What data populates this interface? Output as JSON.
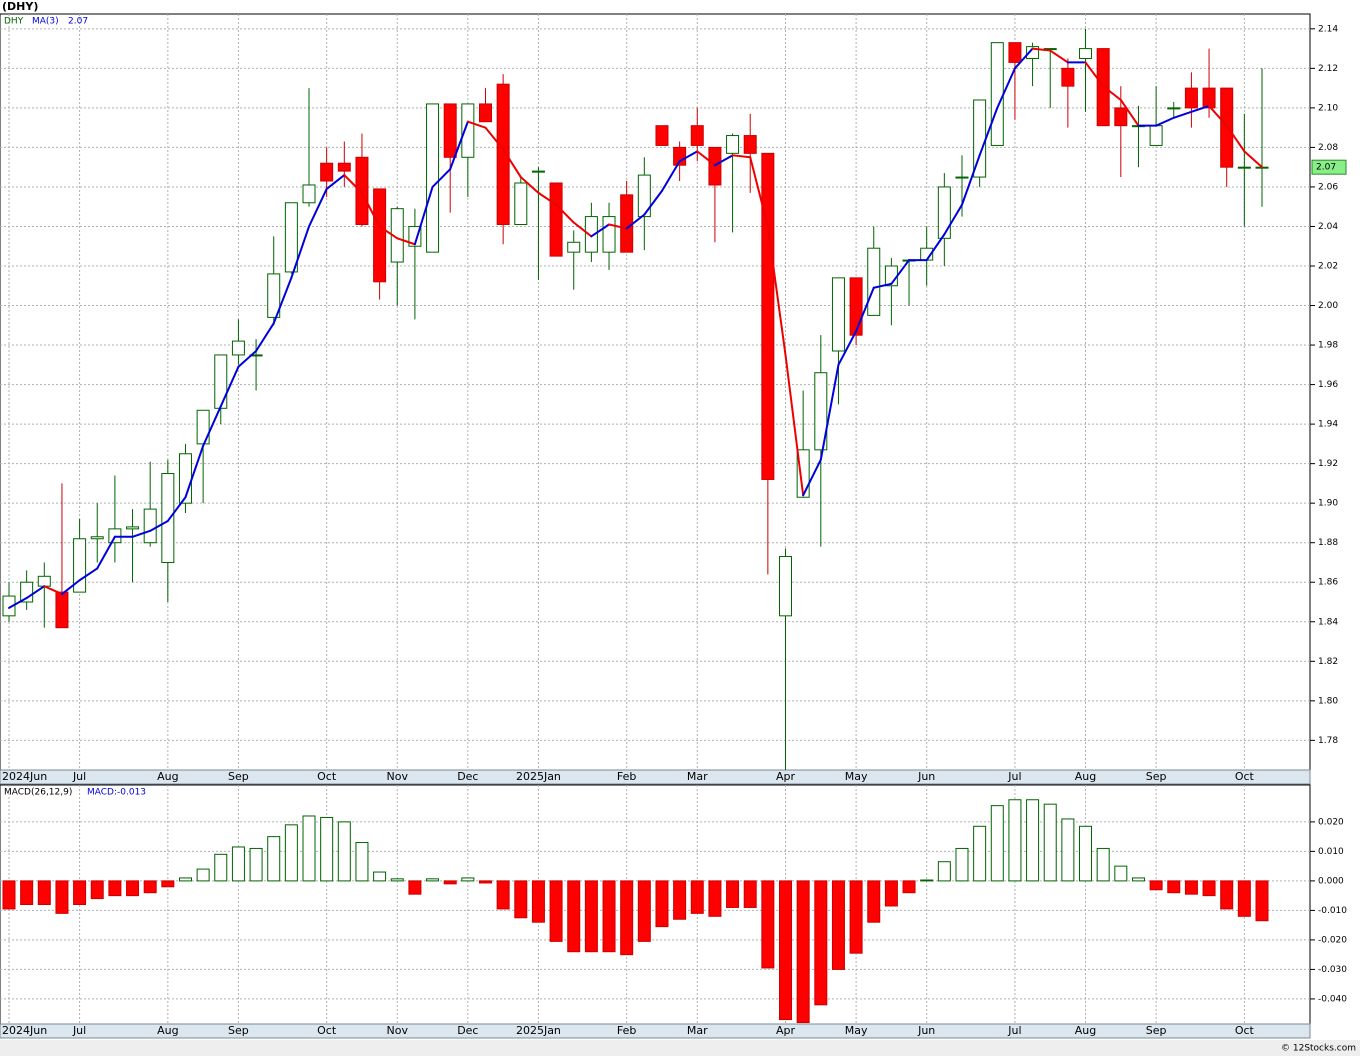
{
  "title": "(DHY)",
  "footer": "© 12Stocks.com",
  "chart_data": [
    {
      "type": "candlestick",
      "name": "DHY",
      "categories": [
        "2024Jun",
        null,
        null,
        null,
        "Jul",
        null,
        null,
        null,
        null,
        "Aug",
        null,
        null,
        null,
        "Sep",
        null,
        null,
        null,
        null,
        "Oct",
        null,
        null,
        null,
        "Nov",
        null,
        null,
        null,
        "Dec",
        null,
        null,
        null,
        "2025Jan",
        null,
        null,
        null,
        null,
        "Feb",
        null,
        null,
        null,
        "Mar",
        null,
        null,
        null,
        null,
        "Apr",
        null,
        null,
        null,
        "May",
        null,
        null,
        null,
        "Jun",
        null,
        null,
        null,
        null,
        "Jul",
        null,
        null,
        null,
        "Aug",
        null,
        null,
        null,
        "Sep",
        null,
        null,
        null,
        null,
        "Oct",
        null
      ],
      "open": [
        1.843,
        1.85,
        1.858,
        1.855,
        1.855,
        1.882,
        1.88,
        1.887,
        1.88,
        1.87,
        1.9,
        1.93,
        1.948,
        1.975,
        1.975,
        1.994,
        2.017,
        2.052,
        2.072,
        2.072,
        2.075,
        2.059,
        2.022,
        2.03,
        2.027,
        2.102,
        2.075,
        2.102,
        2.112,
        2.041,
        2.068,
        2.062,
        2.027,
        2.027,
        2.027,
        2.056,
        2.045,
        2.091,
        2.08,
        2.091,
        2.08,
        2.077,
        2.086,
        2.077,
        1.843,
        1.903,
        1.927,
        1.977,
        2.014,
        1.995,
        2.01,
        2.023,
        2.023,
        2.034,
        2.065,
        2.065,
        2.081,
        2.133,
        2.125,
        2.13,
        2.12,
        2.125,
        2.13,
        2.1,
        2.091,
        2.081,
        2.1,
        2.11,
        2.11,
        2.11,
        2.07,
        2.07
      ],
      "high": [
        1.86,
        1.866,
        1.87,
        1.91,
        1.892,
        1.9,
        1.914,
        1.897,
        1.921,
        1.922,
        1.93,
        1.947,
        1.975,
        1.993,
        1.983,
        2.035,
        2.052,
        2.11,
        2.08,
        2.083,
        2.087,
        2.059,
        2.05,
        2.049,
        2.102,
        2.102,
        2.102,
        2.11,
        2.117,
        2.065,
        2.07,
        2.062,
        2.038,
        2.052,
        2.052,
        2.063,
        2.075,
        2.091,
        2.083,
        2.1,
        2.08,
        2.087,
        2.097,
        2.077,
        1.877,
        1.957,
        1.985,
        2.014,
        2.014,
        2.04,
        2.024,
        2.023,
        2.04,
        2.067,
        2.076,
        2.104,
        2.133,
        2.133,
        2.133,
        2.13,
        2.125,
        2.14,
        2.13,
        2.111,
        2.101,
        2.111,
        2.103,
        2.118,
        2.13,
        2.11,
        2.097,
        2.12
      ],
      "low": [
        1.84,
        1.846,
        1.837,
        1.837,
        1.855,
        1.87,
        1.87,
        1.86,
        1.878,
        1.85,
        1.895,
        1.9,
        1.94,
        1.97,
        1.957,
        1.99,
        2.016,
        2.05,
        2.055,
        2.06,
        2.04,
        2.003,
        2.0,
        1.993,
        2.027,
        2.047,
        2.055,
        2.093,
        2.031,
        2.041,
        2.013,
        2.025,
        2.008,
        2.022,
        2.018,
        2.027,
        2.028,
        2.081,
        2.063,
        2.073,
        2.032,
        2.037,
        2.057,
        1.864,
        1.765,
        1.903,
        1.878,
        1.95,
        1.98,
        1.995,
        1.99,
        2.0,
        2.01,
        2.02,
        2.045,
        2.06,
        2.081,
        2.094,
        2.111,
        2.1,
        2.09,
        2.098,
        2.091,
        2.065,
        2.07,
        2.081,
        2.095,
        2.09,
        2.095,
        2.06,
        2.04,
        2.05
      ],
      "close": [
        1.853,
        1.86,
        1.863,
        1.837,
        1.882,
        1.883,
        1.887,
        1.888,
        1.897,
        1.915,
        1.925,
        1.947,
        1.975,
        1.982,
        1.975,
        2.016,
        2.052,
        2.061,
        2.063,
        2.068,
        2.041,
        2.012,
        2.049,
        2.04,
        2.102,
        2.075,
        2.102,
        2.093,
        2.041,
        2.062,
        2.068,
        2.025,
        2.032,
        2.045,
        2.045,
        2.027,
        2.066,
        2.081,
        2.071,
        2.081,
        2.061,
        2.086,
        2.077,
        1.912,
        1.873,
        1.927,
        1.966,
        2.014,
        1.985,
        2.029,
        2.02,
        2.023,
        2.029,
        2.06,
        2.065,
        2.104,
        2.133,
        2.123,
        2.131,
        2.13,
        2.111,
        2.13,
        2.091,
        2.091,
        2.091,
        2.091,
        2.1,
        2.1,
        2.1,
        2.07,
        2.07,
        2.07
      ],
      "up_color": "#006400",
      "down_color": "#ff0000",
      "ma": {
        "name": "MA(3)",
        "value_label": "2.07",
        "rise_color": "#0000dd",
        "fall_color": "#ee0000",
        "values": [
          1.847,
          1.852,
          1.858,
          1.854,
          1.861,
          1.867,
          1.883,
          1.883,
          1.886,
          1.891,
          1.903,
          1.929,
          1.949,
          1.969,
          1.977,
          1.991,
          2.014,
          2.04,
          2.059,
          2.066,
          2.057,
          2.04,
          2.034,
          2.031,
          2.06,
          2.069,
          2.093,
          2.09,
          2.079,
          2.065,
          2.057,
          2.051,
          2.042,
          2.035,
          2.041,
          2.039,
          2.046,
          2.058,
          2.073,
          2.078,
          2.071,
          2.076,
          2.075,
          2.04,
          1.975,
          1.904,
          1.922,
          1.97,
          1.987,
          2.009,
          2.011,
          2.023,
          2.023,
          2.036,
          2.051,
          2.076,
          2.1,
          2.12,
          2.13,
          2.129,
          2.123,
          2.123,
          2.111,
          2.104,
          2.091,
          2.091,
          2.095,
          2.098,
          2.101,
          2.091,
          2.078,
          2.07
        ]
      },
      "last_price": {
        "value": 2.07,
        "label": "2.07"
      },
      "ylim": [
        1.765,
        2.1475
      ],
      "yticks": [
        1.78,
        {
          "value": 1.8,
          "label": "1.80"
        },
        1.82,
        1.84,
        1.86,
        1.88,
        {
          "value": 1.9,
          "label": "1.90"
        },
        1.92,
        1.94,
        1.96,
        1.98,
        {
          "value": 2,
          "label": "2.00"
        },
        2.02,
        2.04,
        2.06,
        2.08,
        {
          "value": 2.1,
          "label": "2.10"
        },
        2.12,
        2.14
      ],
      "grid": true
    },
    {
      "type": "bar",
      "name": "MACD(26,12,9)",
      "value_label": "MACD:-0.013",
      "categories": [
        "2024Jun",
        null,
        null,
        null,
        "Jul",
        null,
        null,
        null,
        null,
        "Aug",
        null,
        null,
        null,
        "Sep",
        null,
        null,
        null,
        null,
        "Oct",
        null,
        null,
        null,
        "Nov",
        null,
        null,
        null,
        "Dec",
        null,
        null,
        null,
        "2025Jan",
        null,
        null,
        null,
        null,
        "Feb",
        null,
        null,
        null,
        "Mar",
        null,
        null,
        null,
        null,
        "Apr",
        null,
        null,
        null,
        "May",
        null,
        null,
        null,
        "Jun",
        null,
        null,
        null,
        null,
        "Jul",
        null,
        null,
        null,
        "Aug",
        null,
        null,
        null,
        "Sep",
        null,
        null,
        null,
        null,
        "Oct",
        null
      ],
      "values": [
        -0.0095,
        -0.008,
        -0.008,
        -0.011,
        -0.008,
        -0.006,
        -0.005,
        -0.005,
        -0.004,
        -0.002,
        0.001,
        0.004,
        0.009,
        0.0115,
        0.011,
        0.015,
        0.019,
        0.022,
        0.0215,
        0.02,
        0.013,
        0.003,
        0.0007,
        -0.0045,
        0.0007,
        -0.001,
        0.001,
        -0.0007,
        -0.0095,
        -0.0125,
        -0.014,
        -0.0205,
        -0.024,
        -0.024,
        -0.024,
        -0.025,
        -0.0205,
        -0.0155,
        -0.013,
        -0.011,
        -0.012,
        -0.009,
        -0.009,
        -0.0295,
        -0.047,
        -0.048,
        -0.042,
        -0.03,
        -0.0245,
        -0.014,
        -0.0085,
        -0.004,
        0.0003,
        0.0065,
        0.011,
        0.0185,
        0.0255,
        0.0275,
        0.0275,
        0.026,
        0.021,
        0.0185,
        0.011,
        0.005,
        0.001,
        -0.003,
        -0.004,
        -0.0045,
        -0.005,
        -0.0095,
        -0.012,
        -0.0135
      ],
      "pos_color": "#006400",
      "neg_color": "#ff0000",
      "ylim": [
        -0.0485,
        0.0325
      ],
      "yticks": [
        {
          "value": 0.02,
          "label": "0.020"
        },
        {
          "value": 0.01,
          "label": "0.010"
        },
        {
          "value": 0,
          "label": "0.000"
        },
        {
          "value": -0.01,
          "label": "-0.010"
        },
        {
          "value": -0.02,
          "label": "-0.020"
        },
        {
          "value": -0.03,
          "label": "-0.030"
        },
        {
          "value": -0.04,
          "label": "-0.040"
        }
      ],
      "grid": true
    }
  ]
}
